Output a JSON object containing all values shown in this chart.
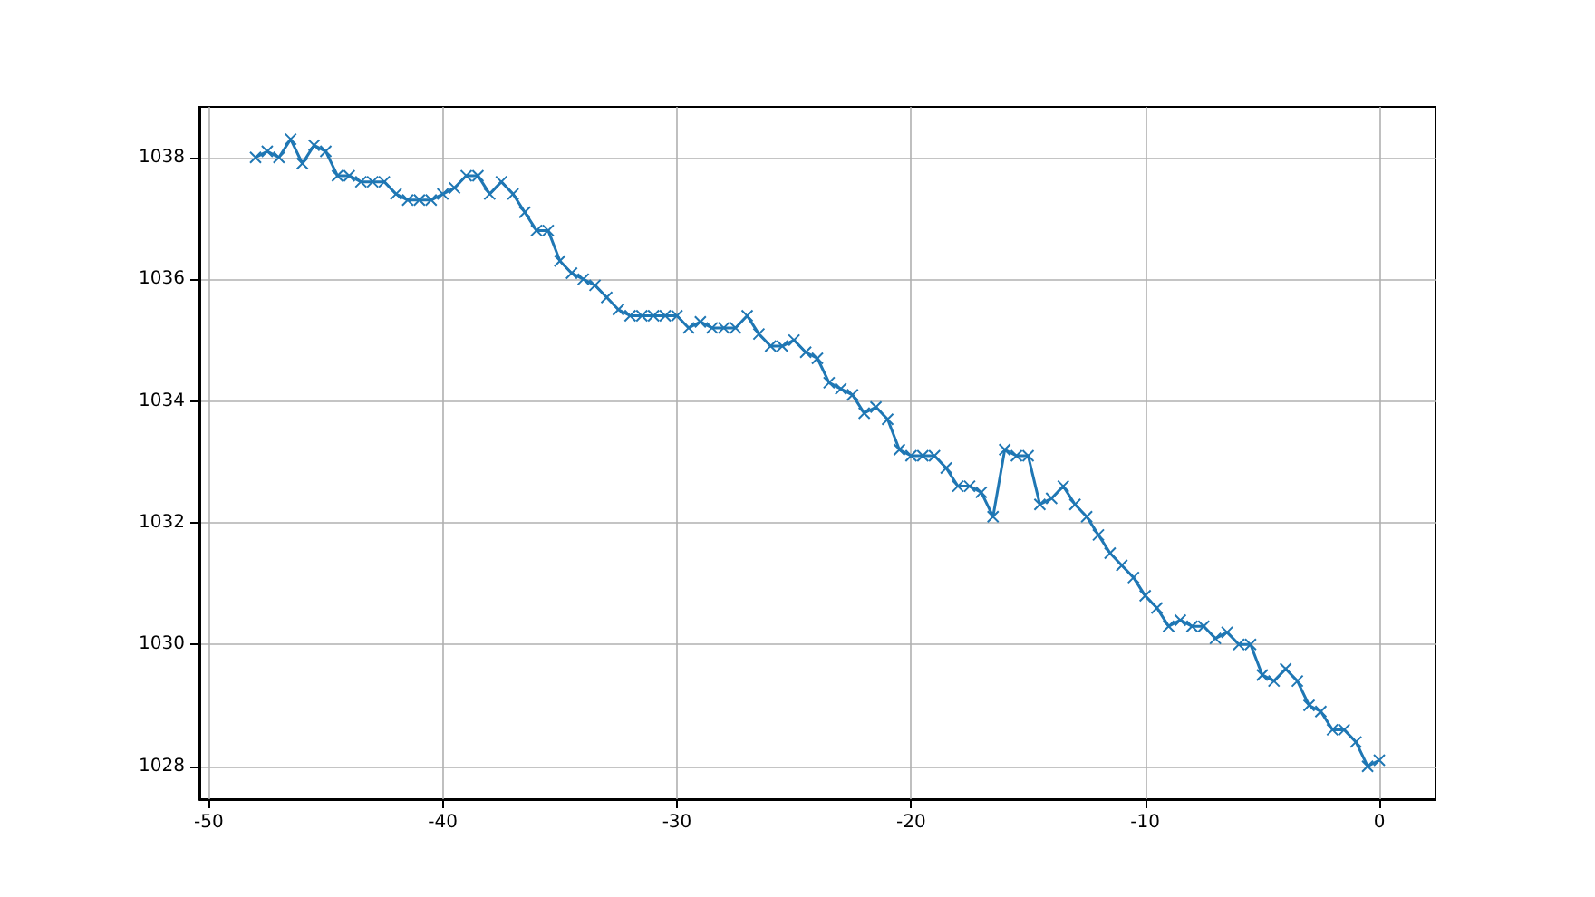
{
  "chart_data": {
    "type": "line",
    "x": [
      -48,
      -47.5,
      -47,
      -46.5,
      -46,
      -45.5,
      -45,
      -44.5,
      -44,
      -43.5,
      -43,
      -42.5,
      -42,
      -41.5,
      -41,
      -40.5,
      -40,
      -39.5,
      -39,
      -38.5,
      -38,
      -37.5,
      -37,
      -36.5,
      -36,
      -35.5,
      -35,
      -34.5,
      -34,
      -33.5,
      -33,
      -32.5,
      -32,
      -31.5,
      -31,
      -30.5,
      -30,
      -29.5,
      -29,
      -28.5,
      -28,
      -27.5,
      -27,
      -26.5,
      -26,
      -25.5,
      -25,
      -24.5,
      -24,
      -23.5,
      -23,
      -22.5,
      -22,
      -21.5,
      -21,
      -20.5,
      -20,
      -19.5,
      -19,
      -18.5,
      -18,
      -17.5,
      -17,
      -16.5,
      -16,
      -15.5,
      -15,
      -14.5,
      -14,
      -13.5,
      -13,
      -12.5,
      -12,
      -11.5,
      -11,
      -10.5,
      -10,
      -9.5,
      -9,
      -8.5,
      -8,
      -7.5,
      -7,
      -6.5,
      -6,
      -5.5,
      -5,
      -4.5,
      -4,
      -3.5,
      -3,
      -2.5,
      -2,
      -1.5,
      -1,
      -0.5,
      0
    ],
    "series": [
      {
        "color": "#1f77b4",
        "values": [
          1038.0,
          1038.1,
          1038.0,
          1038.3,
          1037.9,
          1038.2,
          1038.1,
          1037.7,
          1037.7,
          1037.6,
          1037.6,
          1037.6,
          1037.4,
          1037.3,
          1037.3,
          1037.3,
          1037.4,
          1037.5,
          1037.7,
          1037.7,
          1037.4,
          1037.6,
          1037.4,
          1037.1,
          1036.8,
          1036.8,
          1036.3,
          1036.1,
          1036.0,
          1035.9,
          1035.7,
          1035.5,
          1035.4,
          1035.4,
          1035.4,
          1035.4,
          1035.4,
          1035.2,
          1035.3,
          1035.2,
          1035.2,
          1035.2,
          1035.4,
          1035.1,
          1034.9,
          1034.9,
          1035.0,
          1034.8,
          1034.7,
          1034.3,
          1034.2,
          1034.1,
          1033.8,
          1033.9,
          1033.7,
          1033.2,
          1033.1,
          1033.1,
          1033.1,
          1032.9,
          1032.6,
          1032.6,
          1032.5,
          1032.1,
          1033.2,
          1033.1,
          1033.1,
          1032.3,
          1032.4,
          1032.6,
          1032.3,
          1032.1,
          1031.8,
          1031.5,
          1031.3,
          1031.1,
          1030.8,
          1030.6,
          1030.3,
          1030.4,
          1030.3,
          1030.3,
          1030.1,
          1030.2,
          1030.0,
          1030.0,
          1029.5,
          1029.4,
          1029.6,
          1029.4,
          1029.0,
          1028.9,
          1028.6,
          1028.6,
          1028.4,
          1028.0,
          1028.1
        ]
      }
    ],
    "xlim": [
      -50.4,
      2.4
    ],
    "ylim": [
      1027.46,
      1038.83
    ],
    "xticks": [
      -50,
      -40,
      -30,
      -20,
      -10,
      0
    ],
    "yticks": [
      1028,
      1030,
      1032,
      1034,
      1036,
      1038
    ],
    "grid": true,
    "marker": "cross",
    "line_style": "solid"
  }
}
